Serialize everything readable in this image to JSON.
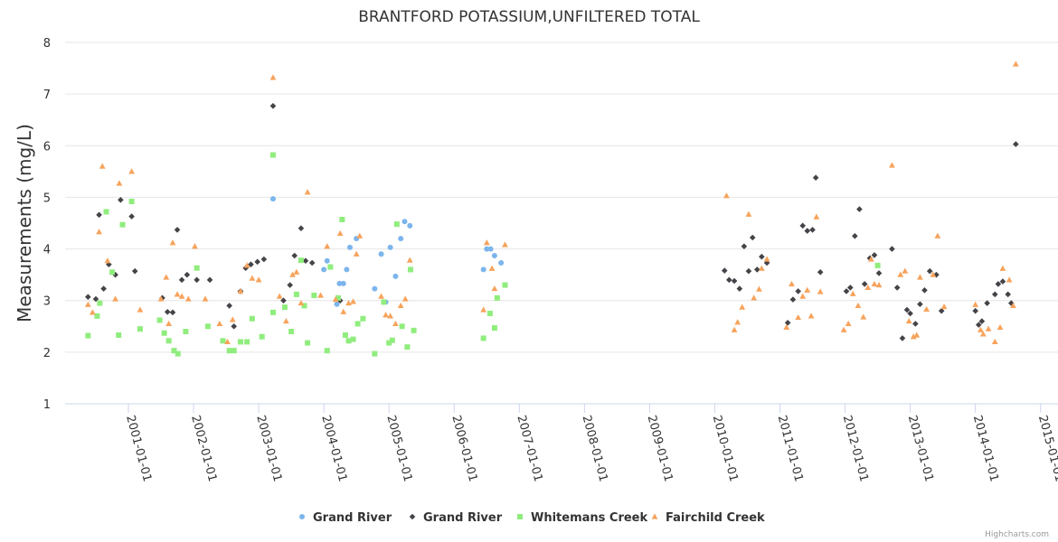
{
  "chart_data": {
    "type": "scatter",
    "title": "BRANTFORD POTASSIUM,UNFILTERED TOTAL",
    "ylabel": "Measurements (mg/L)",
    "xlabel": "",
    "ylim": [
      1,
      8
    ],
    "yticks": [
      "1",
      "2",
      "3",
      "4",
      "5",
      "6",
      "7",
      "8"
    ],
    "xlim": [
      2000.25,
      2015.05
    ],
    "xticks": [
      {
        "x": 2001,
        "label": "2001-01-01"
      },
      {
        "x": 2002,
        "label": "2002-01-01"
      },
      {
        "x": 2003,
        "label": "2003-01-01"
      },
      {
        "x": 2004,
        "label": "2004-01-01"
      },
      {
        "x": 2005,
        "label": "2005-01-01"
      },
      {
        "x": 2006,
        "label": "2006-01-01"
      },
      {
        "x": 2007,
        "label": "2007-01-01"
      },
      {
        "x": 2008,
        "label": "2008-01-01"
      },
      {
        "x": 2009,
        "label": "2009-01-01"
      },
      {
        "x": 2010,
        "label": "2010-01-01"
      },
      {
        "x": 2011,
        "label": "2011-01-01"
      },
      {
        "x": 2012,
        "label": "2012-01-01"
      },
      {
        "x": 2013,
        "label": "2013-01-01"
      },
      {
        "x": 2014,
        "label": "2014-01-01"
      },
      {
        "x": 2015,
        "label": "2015-01-01"
      }
    ],
    "series": [
      {
        "name": "Grand River",
        "marker": "circle",
        "color": "#7cb5ec",
        "points": [
          [
            2003.22,
            4.97
          ],
          [
            2004.0,
            3.6
          ],
          [
            2004.05,
            3.77
          ],
          [
            2004.2,
            2.93
          ],
          [
            2004.24,
            3.33
          ],
          [
            2004.3,
            3.33
          ],
          [
            2004.35,
            3.6
          ],
          [
            2004.4,
            4.03
          ],
          [
            2004.5,
            4.2
          ],
          [
            2004.78,
            3.23
          ],
          [
            2004.88,
            3.9
          ],
          [
            2004.95,
            2.97
          ],
          [
            2005.02,
            4.03
          ],
          [
            2005.1,
            3.47
          ],
          [
            2005.18,
            4.2
          ],
          [
            2005.24,
            4.53
          ],
          [
            2005.32,
            4.45
          ],
          [
            2006.45,
            3.6
          ],
          [
            2006.5,
            4.0
          ],
          [
            2006.56,
            4.0
          ],
          [
            2006.62,
            3.87
          ],
          [
            2006.72,
            3.73
          ]
        ]
      },
      {
        "name": "Grand River",
        "marker": "diamond",
        "color": "#434348",
        "points": [
          [
            2000.38,
            3.07
          ],
          [
            2000.5,
            3.03
          ],
          [
            2000.55,
            4.66
          ],
          [
            2000.62,
            3.23
          ],
          [
            2000.7,
            3.7
          ],
          [
            2000.8,
            3.5
          ],
          [
            2000.88,
            4.95
          ],
          [
            2001.05,
            4.63
          ],
          [
            2001.1,
            3.57
          ],
          [
            2001.52,
            3.05
          ],
          [
            2001.6,
            2.78
          ],
          [
            2001.68,
            2.77
          ],
          [
            2001.75,
            4.37
          ],
          [
            2001.82,
            3.4
          ],
          [
            2001.9,
            3.5
          ],
          [
            2002.05,
            3.4
          ],
          [
            2002.25,
            3.4
          ],
          [
            2002.55,
            2.9
          ],
          [
            2002.62,
            2.5
          ],
          [
            2002.72,
            3.18
          ],
          [
            2002.8,
            3.63
          ],
          [
            2002.88,
            3.7
          ],
          [
            2002.98,
            3.75
          ],
          [
            2003.08,
            3.8
          ],
          [
            2003.22,
            6.77
          ],
          [
            2003.38,
            3.0
          ],
          [
            2003.48,
            3.3
          ],
          [
            2003.55,
            3.87
          ],
          [
            2003.65,
            4.4
          ],
          [
            2003.72,
            3.77
          ],
          [
            2003.82,
            3.73
          ],
          [
            2004.25,
            3.0
          ],
          [
            2010.15,
            3.58
          ],
          [
            2010.22,
            3.4
          ],
          [
            2010.3,
            3.38
          ],
          [
            2010.38,
            3.23
          ],
          [
            2010.45,
            4.05
          ],
          [
            2010.52,
            3.57
          ],
          [
            2010.58,
            4.22
          ],
          [
            2010.65,
            3.6
          ],
          [
            2010.72,
            3.85
          ],
          [
            2010.8,
            3.73
          ],
          [
            2011.12,
            2.57
          ],
          [
            2011.2,
            3.02
          ],
          [
            2011.28,
            3.18
          ],
          [
            2011.35,
            4.45
          ],
          [
            2011.42,
            4.35
          ],
          [
            2011.5,
            4.37
          ],
          [
            2011.55,
            5.38
          ],
          [
            2011.62,
            3.55
          ],
          [
            2012.02,
            3.18
          ],
          [
            2012.08,
            3.25
          ],
          [
            2012.15,
            4.25
          ],
          [
            2012.22,
            4.77
          ],
          [
            2012.3,
            3.32
          ],
          [
            2012.38,
            3.82
          ],
          [
            2012.45,
            3.88
          ],
          [
            2012.52,
            3.53
          ],
          [
            2012.72,
            4.0
          ],
          [
            2012.8,
            3.25
          ],
          [
            2012.88,
            2.27
          ],
          [
            2012.95,
            2.82
          ],
          [
            2013.0,
            2.75
          ],
          [
            2013.08,
            2.55
          ],
          [
            2013.15,
            2.93
          ],
          [
            2013.22,
            3.2
          ],
          [
            2013.3,
            3.57
          ],
          [
            2013.4,
            3.5
          ],
          [
            2013.48,
            2.8
          ],
          [
            2014.0,
            2.8
          ],
          [
            2014.05,
            2.53
          ],
          [
            2014.1,
            2.6
          ],
          [
            2014.18,
            2.95
          ],
          [
            2014.3,
            3.12
          ],
          [
            2014.35,
            3.32
          ],
          [
            2014.42,
            3.37
          ],
          [
            2014.5,
            3.12
          ],
          [
            2014.55,
            2.95
          ],
          [
            2014.62,
            6.03
          ]
        ]
      },
      {
        "name": "Whitemans Creek",
        "marker": "square",
        "color": "#90ed7d",
        "points": [
          [
            2000.38,
            2.32
          ],
          [
            2000.52,
            2.7
          ],
          [
            2000.56,
            2.95
          ],
          [
            2000.66,
            4.72
          ],
          [
            2000.75,
            3.55
          ],
          [
            2000.85,
            2.33
          ],
          [
            2000.91,
            4.47
          ],
          [
            2001.05,
            4.92
          ],
          [
            2001.18,
            2.45
          ],
          [
            2001.48,
            2.62
          ],
          [
            2001.55,
            2.37
          ],
          [
            2001.62,
            2.22
          ],
          [
            2001.7,
            2.03
          ],
          [
            2001.76,
            1.97
          ],
          [
            2001.88,
            2.4
          ],
          [
            2002.05,
            3.63
          ],
          [
            2002.22,
            2.5
          ],
          [
            2002.45,
            2.22
          ],
          [
            2002.55,
            2.03
          ],
          [
            2002.62,
            2.03
          ],
          [
            2002.72,
            2.2
          ],
          [
            2002.82,
            2.2
          ],
          [
            2002.9,
            2.65
          ],
          [
            2003.05,
            2.3
          ],
          [
            2003.22,
            2.77
          ],
          [
            2003.22,
            5.82
          ],
          [
            2003.4,
            2.87
          ],
          [
            2003.5,
            2.4
          ],
          [
            2003.58,
            3.12
          ],
          [
            2003.65,
            3.78
          ],
          [
            2003.7,
            2.9
          ],
          [
            2003.75,
            2.18
          ],
          [
            2003.85,
            3.1
          ],
          [
            2004.05,
            2.03
          ],
          [
            2004.1,
            3.65
          ],
          [
            2004.22,
            3.05
          ],
          [
            2004.28,
            4.57
          ],
          [
            2004.33,
            2.33
          ],
          [
            2004.38,
            2.22
          ],
          [
            2004.45,
            2.25
          ],
          [
            2004.52,
            2.55
          ],
          [
            2004.6,
            2.65
          ],
          [
            2004.78,
            1.97
          ],
          [
            2004.92,
            2.97
          ],
          [
            2005.0,
            2.18
          ],
          [
            2005.05,
            2.23
          ],
          [
            2005.12,
            4.48
          ],
          [
            2005.2,
            2.5
          ],
          [
            2005.28,
            2.1
          ],
          [
            2005.33,
            3.6
          ],
          [
            2005.38,
            2.42
          ],
          [
            2006.45,
            2.27
          ],
          [
            2006.55,
            2.75
          ],
          [
            2006.62,
            2.47
          ],
          [
            2006.66,
            3.05
          ],
          [
            2006.78,
            3.3
          ],
          [
            2012.5,
            3.68
          ]
        ]
      },
      {
        "name": "Fairchild Creek",
        "marker": "triangle",
        "color": "#f7a35c",
        "points": [
          [
            2000.38,
            2.92
          ],
          [
            2000.45,
            2.77
          ],
          [
            2000.55,
            4.33
          ],
          [
            2000.6,
            5.6
          ],
          [
            2000.68,
            3.77
          ],
          [
            2000.8,
            3.03
          ],
          [
            2000.86,
            5.27
          ],
          [
            2001.05,
            5.5
          ],
          [
            2001.18,
            2.82
          ],
          [
            2001.5,
            3.03
          ],
          [
            2001.58,
            3.45
          ],
          [
            2001.62,
            2.55
          ],
          [
            2001.68,
            4.12
          ],
          [
            2001.75,
            3.12
          ],
          [
            2001.82,
            3.08
          ],
          [
            2001.92,
            3.03
          ],
          [
            2002.02,
            4.05
          ],
          [
            2002.18,
            3.03
          ],
          [
            2002.4,
            2.55
          ],
          [
            2002.52,
            2.2
          ],
          [
            2002.6,
            2.63
          ],
          [
            2002.72,
            3.18
          ],
          [
            2002.82,
            3.68
          ],
          [
            2002.9,
            3.43
          ],
          [
            2003.0,
            3.4
          ],
          [
            2003.22,
            7.32
          ],
          [
            2003.32,
            3.08
          ],
          [
            2003.42,
            2.6
          ],
          [
            2003.52,
            3.5
          ],
          [
            2003.58,
            3.55
          ],
          [
            2003.65,
            2.95
          ],
          [
            2003.75,
            5.1
          ],
          [
            2003.95,
            3.1
          ],
          [
            2004.05,
            4.05
          ],
          [
            2004.18,
            3.02
          ],
          [
            2004.25,
            4.3
          ],
          [
            2004.3,
            2.78
          ],
          [
            2004.38,
            2.95
          ],
          [
            2004.45,
            2.98
          ],
          [
            2004.5,
            3.9
          ],
          [
            2004.55,
            4.25
          ],
          [
            2004.88,
            3.08
          ],
          [
            2004.95,
            2.72
          ],
          [
            2005.02,
            2.7
          ],
          [
            2005.1,
            2.55
          ],
          [
            2005.18,
            2.9
          ],
          [
            2005.25,
            3.03
          ],
          [
            2005.32,
            3.78
          ],
          [
            2006.45,
            2.82
          ],
          [
            2006.5,
            4.12
          ],
          [
            2006.58,
            3.62
          ],
          [
            2006.62,
            3.23
          ],
          [
            2006.78,
            4.08
          ],
          [
            2010.18,
            5.03
          ],
          [
            2010.3,
            2.43
          ],
          [
            2010.35,
            2.58
          ],
          [
            2010.42,
            2.87
          ],
          [
            2010.52,
            4.67
          ],
          [
            2010.6,
            3.05
          ],
          [
            2010.68,
            3.22
          ],
          [
            2010.72,
            3.62
          ],
          [
            2010.8,
            3.8
          ],
          [
            2011.1,
            2.48
          ],
          [
            2011.18,
            3.32
          ],
          [
            2011.28,
            2.67
          ],
          [
            2011.35,
            3.08
          ],
          [
            2011.42,
            3.2
          ],
          [
            2011.48,
            2.7
          ],
          [
            2011.56,
            4.62
          ],
          [
            2011.62,
            3.17
          ],
          [
            2011.98,
            2.43
          ],
          [
            2012.05,
            2.55
          ],
          [
            2012.12,
            3.13
          ],
          [
            2012.2,
            2.9
          ],
          [
            2012.28,
            2.68
          ],
          [
            2012.35,
            3.25
          ],
          [
            2012.4,
            3.8
          ],
          [
            2012.45,
            3.32
          ],
          [
            2012.52,
            3.3
          ],
          [
            2012.72,
            5.62
          ],
          [
            2012.85,
            3.5
          ],
          [
            2012.92,
            3.57
          ],
          [
            2012.98,
            2.6
          ],
          [
            2013.05,
            2.3
          ],
          [
            2013.1,
            2.33
          ],
          [
            2013.15,
            3.45
          ],
          [
            2013.25,
            2.83
          ],
          [
            2013.35,
            3.5
          ],
          [
            2013.42,
            4.25
          ],
          [
            2013.52,
            2.88
          ],
          [
            2014.0,
            2.92
          ],
          [
            2014.08,
            2.43
          ],
          [
            2014.12,
            2.35
          ],
          [
            2014.2,
            2.45
          ],
          [
            2014.3,
            2.2
          ],
          [
            2014.38,
            2.48
          ],
          [
            2014.42,
            3.62
          ],
          [
            2014.52,
            3.4
          ],
          [
            2014.58,
            2.9
          ],
          [
            2014.62,
            7.58
          ]
        ]
      }
    ],
    "legend": {
      "position": "bottom-center",
      "items": [
        "Grand River",
        "Grand River",
        "Whitemans Creek",
        "Fairchild Creek"
      ]
    },
    "credits": "Highcharts.com"
  }
}
